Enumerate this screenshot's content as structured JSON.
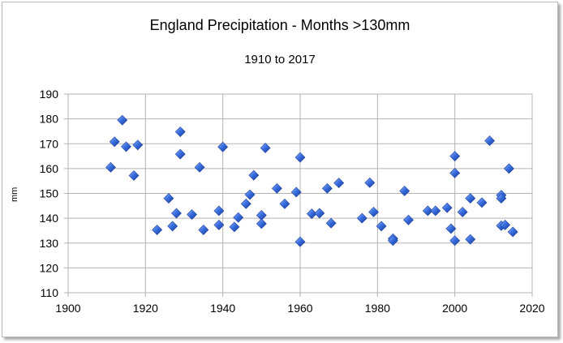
{
  "chart_data": {
    "type": "scatter",
    "title": "England Precipitation - Months >130mm",
    "subtitle": "1910 to 2017",
    "xlabel": "",
    "ylabel": "mm",
    "xlim": [
      1900,
      2020
    ],
    "ylim": [
      110,
      190
    ],
    "xticks": [
      1900,
      1920,
      1940,
      1960,
      1980,
      2000,
      2020
    ],
    "yticks": [
      110,
      120,
      130,
      140,
      150,
      160,
      170,
      180,
      190
    ],
    "grid": true,
    "marker_color": "#2f5fd0",
    "points": [
      [
        1911,
        160.5
      ],
      [
        1912,
        170.8
      ],
      [
        1914,
        179.5
      ],
      [
        1915,
        168.8
      ],
      [
        1917,
        157.2
      ],
      [
        1918,
        169.5
      ],
      [
        1923,
        135.3
      ],
      [
        1926,
        148.0
      ],
      [
        1927,
        136.8
      ],
      [
        1928,
        142.0
      ],
      [
        1929,
        174.8
      ],
      [
        1929,
        165.8
      ],
      [
        1932,
        141.5
      ],
      [
        1934,
        160.5
      ],
      [
        1935,
        135.3
      ],
      [
        1939,
        137.3
      ],
      [
        1939,
        143.0
      ],
      [
        1940,
        168.7
      ],
      [
        1943,
        136.5
      ],
      [
        1944,
        140.3
      ],
      [
        1946,
        145.8
      ],
      [
        1947,
        149.5
      ],
      [
        1948,
        157.3
      ],
      [
        1950,
        141.2
      ],
      [
        1950,
        137.8
      ],
      [
        1951,
        168.3
      ],
      [
        1954,
        152.0
      ],
      [
        1956,
        145.8
      ],
      [
        1959,
        150.5
      ],
      [
        1960,
        164.5
      ],
      [
        1960,
        130.5
      ],
      [
        1963,
        141.8
      ],
      [
        1965,
        142.0
      ],
      [
        1967,
        152.0
      ],
      [
        1968,
        138.0
      ],
      [
        1970,
        154.2
      ],
      [
        1976,
        140.0
      ],
      [
        1978,
        154.3
      ],
      [
        1979,
        142.5
      ],
      [
        1981,
        136.8
      ],
      [
        1984,
        131.8
      ],
      [
        1984,
        131.0
      ],
      [
        1987,
        151.0
      ],
      [
        1988,
        139.3
      ],
      [
        1993,
        143.0
      ],
      [
        1995,
        143.0
      ],
      [
        1998,
        144.2
      ],
      [
        1999,
        135.8
      ],
      [
        2000,
        165.0
      ],
      [
        2000,
        158.2
      ],
      [
        2000,
        131.0
      ],
      [
        2002,
        142.5
      ],
      [
        2004,
        148.0
      ],
      [
        2004,
        131.5
      ],
      [
        2007,
        146.3
      ],
      [
        2009,
        171.2
      ],
      [
        2012,
        149.3
      ],
      [
        2012,
        148.0
      ],
      [
        2012,
        137.0
      ],
      [
        2013,
        137.3
      ],
      [
        2014,
        160.0
      ],
      [
        2015,
        134.5
      ]
    ]
  }
}
